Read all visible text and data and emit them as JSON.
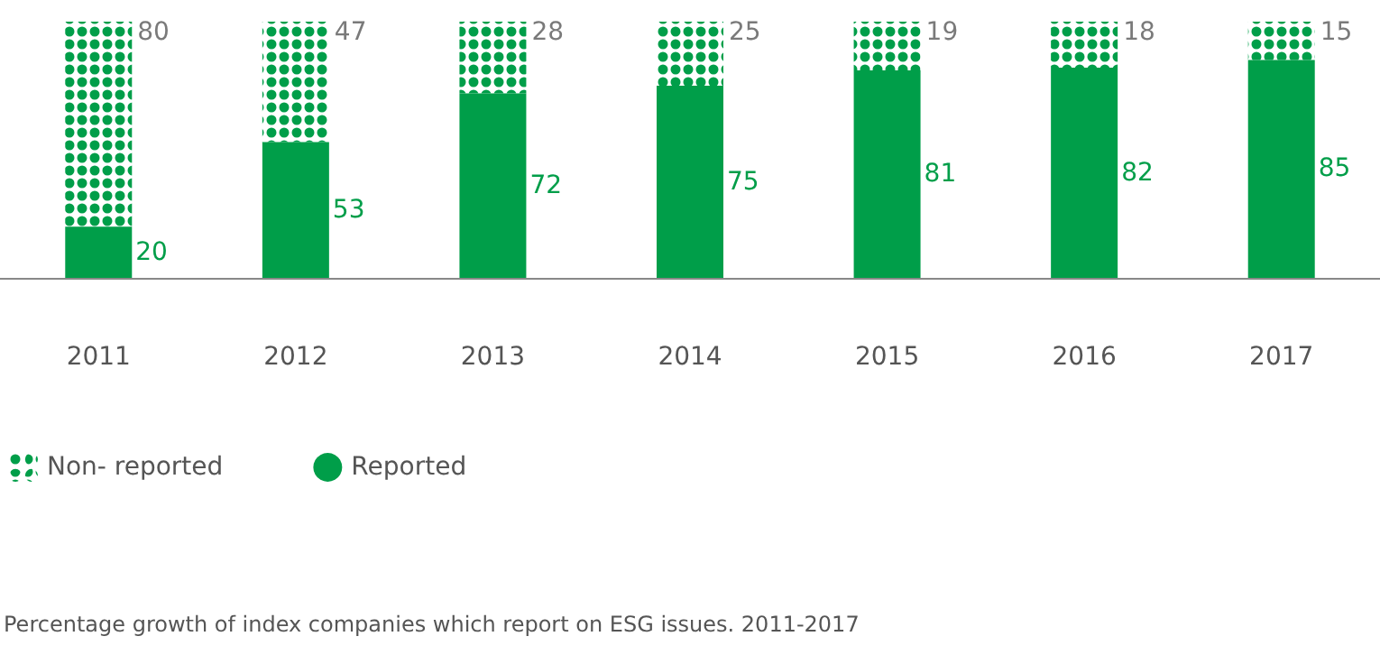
{
  "chart_data": {
    "type": "bar",
    "stacked": true,
    "categories": [
      "2011",
      "2012",
      "2013",
      "2014",
      "2015",
      "2016",
      "2017"
    ],
    "series": [
      {
        "name": "Reported",
        "color": "#009e49",
        "values": [
          20,
          53,
          72,
          75,
          81,
          82,
          85
        ]
      },
      {
        "name": "Non- reported",
        "color": "#009e49",
        "values": [
          80,
          47,
          28,
          25,
          19,
          18,
          15
        ]
      }
    ],
    "tick_labels": "x",
    "legend": "bottom left",
    "data_labels": true,
    "annotations": [
      "Percentage growth of index companies which report on ESG issues. 2011-2017"
    ]
  }
}
